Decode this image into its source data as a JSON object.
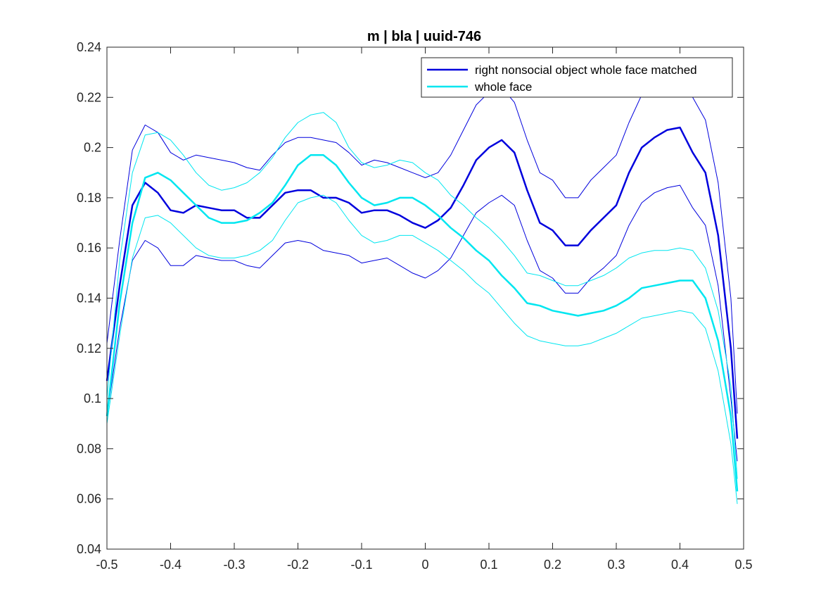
{
  "chart_data": {
    "type": "line",
    "title": "m | bla | uuid-746",
    "xlabel": "",
    "ylabel": "",
    "xlim": [
      -0.5,
      0.5
    ],
    "ylim": [
      0.04,
      0.24
    ],
    "xticks": [
      "-0.5",
      "-0.4",
      "-0.3",
      "-0.2",
      "-0.1",
      "0",
      "0.1",
      "0.2",
      "0.3",
      "0.4",
      "0.5"
    ],
    "yticks": [
      "0.04",
      "0.06",
      "0.08",
      "0.1",
      "0.12",
      "0.14",
      "0.16",
      "0.18",
      "0.2",
      "0.22",
      "0.24"
    ],
    "grid": false,
    "legend_position": "top-right",
    "x": [
      -0.5,
      -0.48,
      -0.46,
      -0.44,
      -0.42,
      -0.4,
      -0.38,
      -0.36,
      -0.34,
      -0.32,
      -0.3,
      -0.28,
      -0.26,
      -0.24,
      -0.22,
      -0.2,
      -0.18,
      -0.16,
      -0.14,
      -0.12,
      -0.1,
      -0.08,
      -0.06,
      -0.04,
      -0.02,
      0.0,
      0.02,
      0.04,
      0.06,
      0.08,
      0.1,
      0.12,
      0.14,
      0.16,
      0.18,
      0.2,
      0.22,
      0.24,
      0.26,
      0.28,
      0.3,
      0.32,
      0.34,
      0.36,
      0.38,
      0.4,
      0.42,
      0.44,
      0.46,
      0.48,
      0.49
    ],
    "series": [
      {
        "name": "right nonsocial object whole face matched",
        "color": "#0000dd",
        "mean": [
          0.107,
          0.145,
          0.177,
          0.186,
          0.182,
          0.175,
          0.174,
          0.177,
          0.176,
          0.175,
          0.175,
          0.172,
          0.172,
          0.177,
          0.182,
          0.183,
          0.183,
          0.18,
          0.18,
          0.178,
          0.174,
          0.175,
          0.175,
          0.173,
          0.17,
          0.168,
          0.171,
          0.176,
          0.185,
          0.195,
          0.2,
          0.203,
          0.198,
          0.183,
          0.17,
          0.167,
          0.161,
          0.161,
          0.167,
          0.172,
          0.177,
          0.19,
          0.2,
          0.204,
          0.207,
          0.208,
          0.198,
          0.19,
          0.165,
          0.12,
          0.084
        ],
        "upper": [
          0.122,
          0.163,
          0.199,
          0.209,
          0.206,
          0.198,
          0.195,
          0.197,
          0.196,
          0.195,
          0.194,
          0.192,
          0.191,
          0.197,
          0.202,
          0.204,
          0.204,
          0.203,
          0.202,
          0.198,
          0.193,
          0.195,
          0.194,
          0.192,
          0.19,
          0.188,
          0.19,
          0.197,
          0.207,
          0.217,
          0.222,
          0.224,
          0.218,
          0.203,
          0.19,
          0.187,
          0.18,
          0.18,
          0.187,
          0.192,
          0.197,
          0.21,
          0.221,
          0.226,
          0.228,
          0.229,
          0.22,
          0.211,
          0.186,
          0.14,
          0.094
        ],
        "lower": [
          0.093,
          0.128,
          0.155,
          0.163,
          0.16,
          0.153,
          0.153,
          0.157,
          0.156,
          0.155,
          0.155,
          0.153,
          0.152,
          0.157,
          0.162,
          0.163,
          0.162,
          0.159,
          0.158,
          0.157,
          0.154,
          0.155,
          0.156,
          0.153,
          0.15,
          0.148,
          0.151,
          0.156,
          0.165,
          0.174,
          0.178,
          0.181,
          0.177,
          0.163,
          0.151,
          0.148,
          0.142,
          0.142,
          0.148,
          0.152,
          0.157,
          0.169,
          0.178,
          0.182,
          0.184,
          0.185,
          0.176,
          0.169,
          0.145,
          0.1,
          0.075
        ]
      },
      {
        "name": "whole face",
        "color": "#00e6f0",
        "mean": [
          0.093,
          0.138,
          0.17,
          0.188,
          0.19,
          0.187,
          0.182,
          0.177,
          0.172,
          0.17,
          0.17,
          0.171,
          0.174,
          0.178,
          0.185,
          0.193,
          0.197,
          0.197,
          0.193,
          0.186,
          0.18,
          0.177,
          0.178,
          0.18,
          0.18,
          0.177,
          0.173,
          0.168,
          0.164,
          0.159,
          0.155,
          0.149,
          0.144,
          0.138,
          0.137,
          0.135,
          0.134,
          0.133,
          0.134,
          0.135,
          0.137,
          0.14,
          0.144,
          0.145,
          0.146,
          0.147,
          0.147,
          0.14,
          0.123,
          0.093,
          0.063
        ],
        "upper": [
          0.1,
          0.155,
          0.19,
          0.205,
          0.206,
          0.203,
          0.197,
          0.19,
          0.185,
          0.183,
          0.184,
          0.186,
          0.19,
          0.196,
          0.204,
          0.21,
          0.213,
          0.214,
          0.21,
          0.2,
          0.194,
          0.192,
          0.193,
          0.195,
          0.194,
          0.19,
          0.187,
          0.181,
          0.177,
          0.172,
          0.168,
          0.163,
          0.157,
          0.15,
          0.149,
          0.147,
          0.145,
          0.145,
          0.147,
          0.149,
          0.152,
          0.156,
          0.158,
          0.159,
          0.159,
          0.16,
          0.159,
          0.152,
          0.135,
          0.105,
          0.068
        ],
        "lower": [
          0.09,
          0.125,
          0.156,
          0.172,
          0.173,
          0.17,
          0.165,
          0.16,
          0.157,
          0.156,
          0.156,
          0.157,
          0.159,
          0.163,
          0.171,
          0.178,
          0.18,
          0.181,
          0.178,
          0.171,
          0.165,
          0.162,
          0.163,
          0.165,
          0.165,
          0.162,
          0.159,
          0.155,
          0.151,
          0.146,
          0.142,
          0.136,
          0.13,
          0.125,
          0.123,
          0.122,
          0.121,
          0.121,
          0.122,
          0.124,
          0.126,
          0.129,
          0.132,
          0.133,
          0.134,
          0.135,
          0.134,
          0.128,
          0.111,
          0.082,
          0.058
        ]
      }
    ]
  }
}
